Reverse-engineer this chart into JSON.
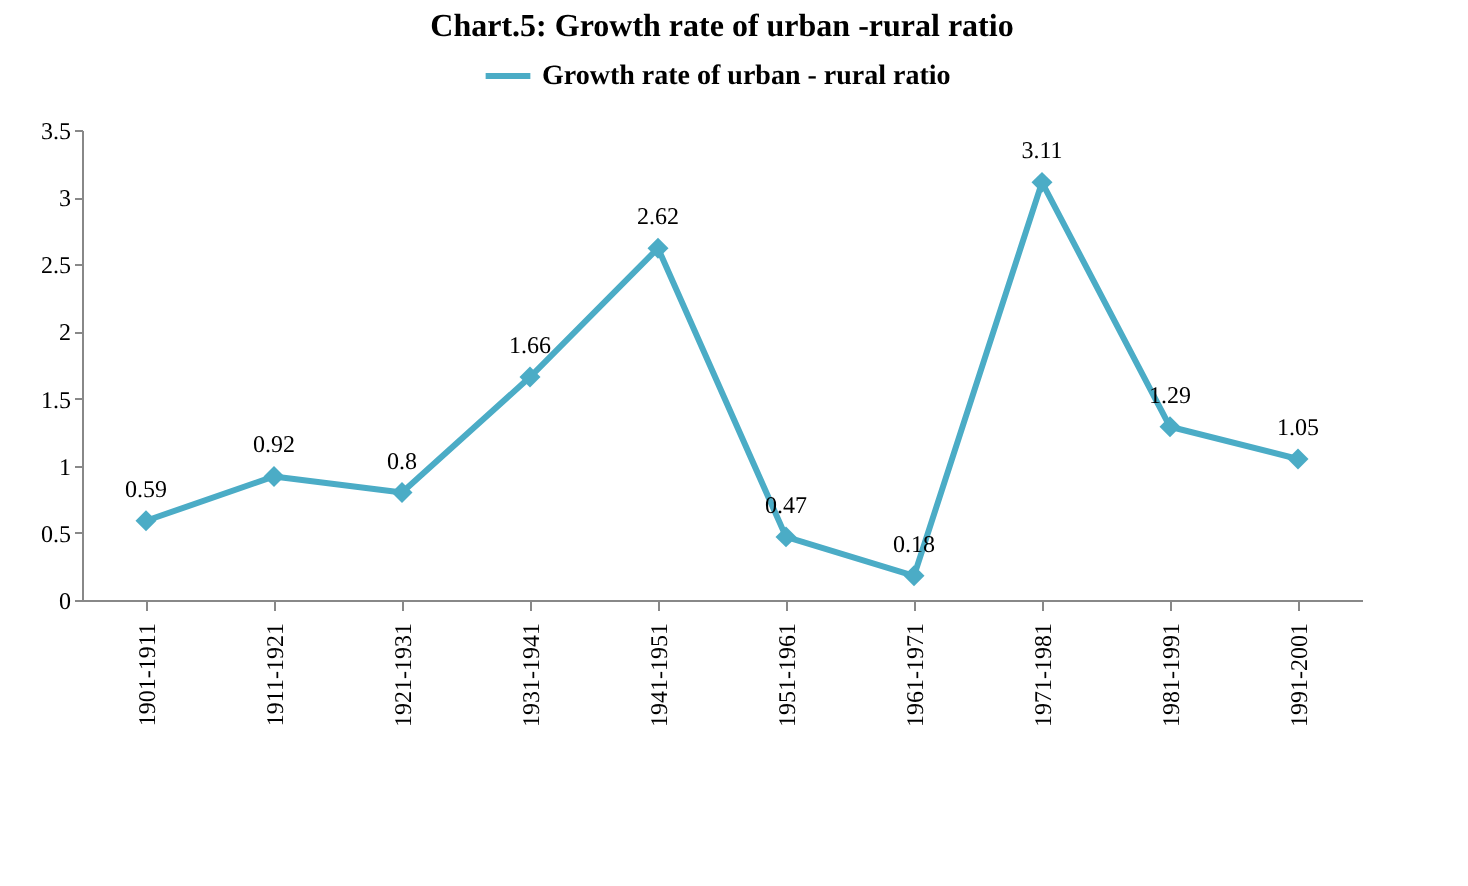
{
  "chart_data": {
    "type": "line",
    "title": "Chart.5: Growth rate of urban -rural ratio",
    "categories": [
      "1901-1911",
      "1911-1921",
      "1921-1931",
      "1931-1941",
      "1941-1951",
      "1951-1961",
      "1961-1971",
      "1971-1981",
      "1981-1991",
      "1991-2001"
    ],
    "series": [
      {
        "name": "Growth rate of urban - rural ratio",
        "color": "#4bacc6",
        "values": [
          0.59,
          0.92,
          0.8,
          1.66,
          2.62,
          0.47,
          0.18,
          3.11,
          1.29,
          1.05
        ]
      }
    ],
    "ylim": [
      0,
      3.5
    ],
    "yticks": [
      0,
      0.5,
      1,
      1.5,
      2,
      2.5,
      3,
      3.5
    ],
    "grid": false,
    "legend": "top",
    "marker": "diamond",
    "line_style": "solid",
    "data_labels": true
  }
}
